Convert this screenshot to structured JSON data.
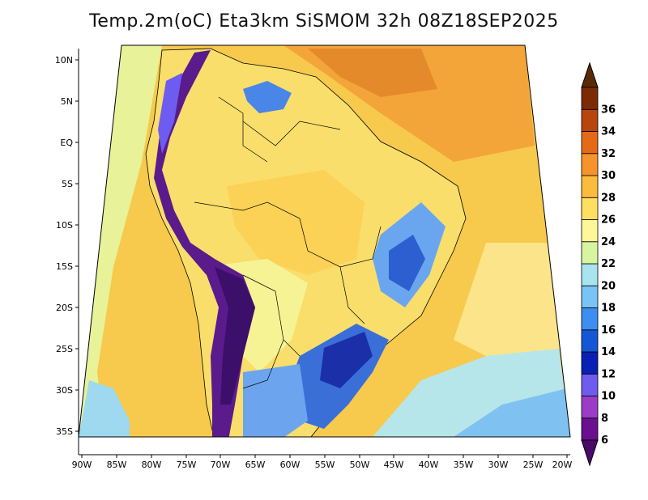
{
  "title": "Temp.2m(oC) Eta3km SiSMOM 32h 08Z18SEP2025",
  "lat_labels": [
    "10N",
    "5N",
    "EQ",
    "5S",
    "10S",
    "15S",
    "20S",
    "25S",
    "30S",
    "35S"
  ],
  "lon_labels": [
    "90W",
    "85W",
    "80W",
    "75W",
    "70W",
    "65W",
    "60W",
    "55W",
    "50W",
    "45W",
    "40W",
    "35W",
    "30W",
    "25W",
    "20W"
  ],
  "colorbar": {
    "labels": [
      "6",
      "8",
      "10",
      "12",
      "14",
      "16",
      "18",
      "20",
      "22",
      "24",
      "26",
      "28",
      "30",
      "32",
      "34",
      "36"
    ],
    "colors": [
      "#6a0f8f",
      "#9b3cc6",
      "#6e5cf0",
      "#0a1fb4",
      "#1457d6",
      "#3c8ef0",
      "#7ac4f5",
      "#a8e3ef",
      "#d7f5a0",
      "#fdf79a",
      "#fde060",
      "#fbbb3c",
      "#f6932a",
      "#e56a18",
      "#b8440e",
      "#7a2b06"
    ]
  },
  "map": {
    "ocean_color": "#fac84a",
    "continent_warm": "#f8de6a",
    "andes_cold": "#5b1a8a",
    "south_cold": "#3a6fd6"
  }
}
